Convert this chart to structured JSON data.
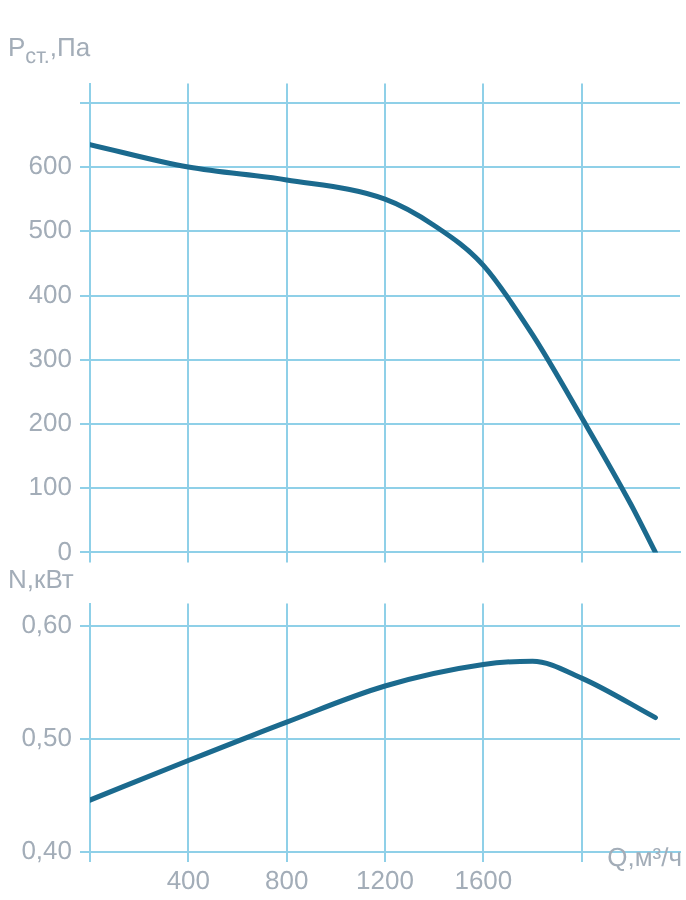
{
  "chart_data": [
    {
      "type": "line",
      "ylabel": "P$_{ст.}$,Па",
      "x": [
        0,
        400,
        800,
        1200,
        1400,
        1600,
        1800,
        2000,
        2200,
        2300
      ],
      "series": [
        {
          "color": "#1b6a8e",
          "values": [
            635,
            600,
            580,
            550,
            509,
            447,
            339,
            210,
            75,
            0
          ]
        }
      ],
      "xlim": [
        0,
        2400
      ],
      "ylim": [
        0,
        730
      ],
      "xticks": [
        {
          "value": 0,
          "label": null
        },
        {
          "value": 400,
          "label": null
        },
        {
          "value": 800,
          "label": null
        },
        {
          "value": 1200,
          "label": null
        },
        {
          "value": 1600,
          "label": null
        },
        {
          "value": 2000,
          "label": null
        }
      ],
      "yticks": [
        0,
        100,
        200,
        300,
        400,
        500,
        600,
        {
          "value": 700,
          "label": null
        }
      ],
      "grid": true,
      "tick_labels": "y",
      "marker": "none",
      "line_style": "solid"
    },
    {
      "type": "line",
      "ylabel": "N,кВт",
      "xlabel": "Q,м³/ч",
      "x": [
        0,
        400,
        800,
        1200,
        1600,
        1800,
        2000,
        2300
      ],
      "series": [
        {
          "color": "#1b6a8e",
          "values": [
            0.446,
            0.481,
            0.515,
            0.547,
            0.566,
            0.569,
            0.554,
            0.519
          ]
        }
      ],
      "xlim": [
        0,
        2400
      ],
      "ylim": [
        0.4,
        0.62
      ],
      "xticks": [
        {
          "value": 0,
          "label": null
        },
        400,
        800,
        1200,
        1600,
        {
          "value": 2000,
          "label": null
        }
      ],
      "yticks": [
        {
          "value": 0.4,
          "label": "0,40"
        },
        {
          "value": 0.5,
          "label": "0,50"
        },
        {
          "value": 0.6,
          "label": "0,60"
        }
      ],
      "grid": true,
      "marker": "none",
      "line_style": "solid"
    }
  ]
}
